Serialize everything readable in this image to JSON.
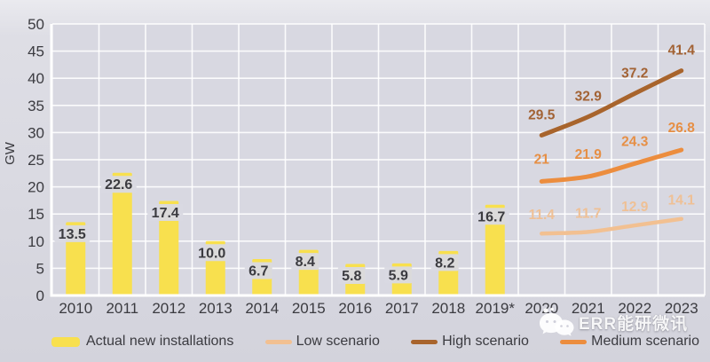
{
  "chart_data": {
    "type": "bar+line",
    "title": "",
    "xlabel": "",
    "ylabel": "GW",
    "ylim": [
      0,
      50
    ],
    "ytick_step": 5,
    "grid": true,
    "legend_position": "bottom",
    "categories": [
      "2010",
      "2011",
      "2012",
      "2013",
      "2014",
      "2015",
      "2016",
      "2017",
      "2018",
      "2019*",
      "2020",
      "2021",
      "2022",
      "2023"
    ],
    "bar_series": {
      "name": "Actual new installations",
      "color": "#F8E04E",
      "label_color": "#3B3B40",
      "values": [
        13.5,
        22.6,
        17.4,
        10.0,
        6.7,
        8.4,
        5.8,
        5.9,
        8.2,
        16.7
      ],
      "labels": [
        "13.5",
        "22.6",
        "17.4",
        "10.0",
        "6.7",
        "8.4",
        "5.8",
        "5.9",
        "8.2",
        "16.7"
      ]
    },
    "line_series": [
      {
        "name": "Low scenario",
        "color": "#F2C091",
        "label_color": "#EFC095",
        "stroke_width": 4.5,
        "label_dy": -21,
        "x_start_index": 10,
        "values": [
          11.4,
          11.7,
          12.9,
          14.1
        ],
        "labels": [
          "11.4",
          "11.7",
          "12.9",
          "14.1"
        ]
      },
      {
        "name": "High scenario",
        "color": "#A8642C",
        "label_color": "#A26234",
        "stroke_width": 5,
        "label_dy": -23,
        "x_start_index": 10,
        "values": [
          29.5,
          32.9,
          37.2,
          41.4
        ],
        "labels": [
          "29.5",
          "32.9",
          "37.2",
          "41.4"
        ]
      },
      {
        "name": "Medium scenario",
        "color": "#EC8D3E",
        "label_color": "#E68F45",
        "stroke_width": 5,
        "label_dy": -25,
        "x_start_index": 10,
        "values": [
          21,
          21.9,
          24.3,
          26.8
        ],
        "labels": [
          "21",
          "21.9",
          "24.3",
          "26.8"
        ]
      }
    ]
  },
  "legend": {
    "items": [
      {
        "label": "Actual new installations",
        "swatch": "bar",
        "color": "#F8E04E"
      },
      {
        "label": "Low scenario",
        "swatch": "line",
        "color": "#F2C091"
      },
      {
        "label": "High scenario",
        "swatch": "line",
        "color": "#A8642C"
      },
      {
        "label": "Medium scenario",
        "swatch": "line",
        "color": "#EC8D3E"
      }
    ]
  },
  "watermark": {
    "text": "ERR能研微讯"
  },
  "colors": {
    "plot_bg": "#d8d8e1",
    "grid": "#ffffff",
    "tick_text": "#3B3B40",
    "label_box_bg": "#d9d9e2"
  }
}
